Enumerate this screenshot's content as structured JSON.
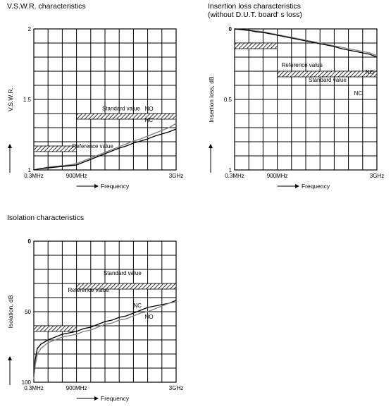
{
  "panels": [
    {
      "title_lines": [
        "V.S.W.R. characteristics"
      ]
    },
    {
      "title_lines": [
        "Insertion loss characteristics",
        "(without D.U.T. board' s loss)"
      ]
    },
    {
      "title_lines": [
        "Isolation characteristics"
      ]
    }
  ],
  "colors": {
    "no_curve": "#808080",
    "nc_curve": "#000000",
    "grid": "#000000"
  },
  "chart_data": [
    {
      "type": "line",
      "title": "V.S.W.R. characteristics",
      "xlabel": "Frequency",
      "ylabel": "V.S.W.R.",
      "x_tick_labels": [
        "0.3MHz",
        "900MHz",
        "3GHz"
      ],
      "x_ticks_ghz": [
        0.0003,
        0.9,
        3
      ],
      "y_tick_labels": [
        "1",
        "1.5",
        "2"
      ],
      "ylim": [
        1,
        2
      ],
      "y_inverted": false,
      "x_grid_divisions": 10,
      "y_grid_divisions": 10,
      "standard_value": {
        "label": "Standard value",
        "segments": [
          {
            "x0": 0.0003,
            "x1": 0.9,
            "y": 1.15
          },
          {
            "x0": 0.9,
            "x1": 3,
            "y": 1.38
          }
        ]
      },
      "reference_label": "Reference value",
      "series": [
        {
          "name": "NO",
          "x": [
            0.0003,
            0.15,
            0.3,
            0.45,
            0.6,
            0.75,
            0.9,
            1.05,
            1.2,
            1.35,
            1.5,
            1.65,
            1.8,
            1.95,
            2.1,
            2.25,
            2.4,
            2.55,
            2.7,
            2.85,
            3
          ],
          "y": [
            1.0,
            1.01,
            1.02,
            1.025,
            1.03,
            1.035,
            1.045,
            1.065,
            1.085,
            1.105,
            1.125,
            1.145,
            1.165,
            1.185,
            1.205,
            1.22,
            1.24,
            1.26,
            1.28,
            1.3,
            1.33
          ]
        },
        {
          "name": "NC",
          "x": [
            0.0003,
            0.15,
            0.3,
            0.45,
            0.6,
            0.75,
            0.9,
            1.05,
            1.2,
            1.35,
            1.5,
            1.65,
            1.8,
            1.95,
            2.1,
            2.25,
            2.4,
            2.55,
            2.7,
            2.85,
            3
          ],
          "y": [
            1.0,
            1.01,
            1.015,
            1.02,
            1.025,
            1.03,
            1.035,
            1.055,
            1.075,
            1.095,
            1.115,
            1.135,
            1.155,
            1.17,
            1.19,
            1.205,
            1.22,
            1.24,
            1.255,
            1.27,
            1.29
          ]
        }
      ],
      "annotations": [
        "Standard value",
        "Reference value",
        "NO",
        "NC"
      ]
    },
    {
      "type": "line",
      "title": "Insertion loss characteristics",
      "xlabel": "Frequency",
      "ylabel": "Insertion loss, dB",
      "x_tick_labels": [
        "0.3MHz",
        "900MHz",
        "3GHz"
      ],
      "x_ticks_ghz": [
        0.0003,
        0.9,
        3
      ],
      "y_tick_labels": [
        "0",
        "0.5",
        "1"
      ],
      "ylim": [
        0,
        1
      ],
      "y_inverted": true,
      "x_grid_divisions": 10,
      "y_grid_divisions": 10,
      "standard_value": {
        "label": "Standard value",
        "segments": [
          {
            "x0": 0.0003,
            "x1": 0.9,
            "y": 0.1
          },
          {
            "x0": 0.9,
            "x1": 3,
            "y": 0.3
          }
        ]
      },
      "reference_label": "Reference value",
      "series": [
        {
          "name": "NO",
          "x": [
            0.0003,
            0.15,
            0.3,
            0.45,
            0.6,
            0.75,
            0.9,
            1.05,
            1.2,
            1.35,
            1.5,
            1.65,
            1.8,
            1.95,
            2.1,
            2.25,
            2.4,
            2.55,
            2.7,
            2.85,
            3
          ],
          "y": [
            0.0,
            0.005,
            0.01,
            0.015,
            0.02,
            0.03,
            0.04,
            0.05,
            0.06,
            0.07,
            0.08,
            0.09,
            0.1,
            0.11,
            0.12,
            0.13,
            0.14,
            0.15,
            0.16,
            0.17,
            0.19
          ]
        },
        {
          "name": "NC",
          "x": [
            0.0003,
            0.15,
            0.3,
            0.45,
            0.6,
            0.75,
            0.9,
            1.05,
            1.2,
            1.35,
            1.5,
            1.65,
            1.8,
            1.95,
            2.1,
            2.25,
            2.4,
            2.55,
            2.7,
            2.85,
            3
          ],
          "y": [
            0.0,
            0.005,
            0.01,
            0.02,
            0.025,
            0.035,
            0.045,
            0.055,
            0.065,
            0.075,
            0.085,
            0.095,
            0.105,
            0.115,
            0.125,
            0.14,
            0.15,
            0.16,
            0.17,
            0.18,
            0.2
          ]
        }
      ],
      "annotations": [
        "Standard value",
        "Reference value",
        "NO",
        "NC"
      ]
    },
    {
      "type": "line",
      "title": "Isolation characteristics",
      "xlabel": "Frequency",
      "ylabel": "Isolation, dB",
      "x_tick_labels": [
        "0.3MHz",
        "900MHz",
        "3GHz"
      ],
      "x_ticks_ghz": [
        0.0003,
        0.9,
        3
      ],
      "y_tick_labels": [
        "0",
        "50",
        "100"
      ],
      "ylim": [
        0,
        100
      ],
      "y_inverted": true,
      "x_grid_divisions": 10,
      "y_grid_divisions": 10,
      "standard_value": {
        "label": "Standard value",
        "segments": [
          {
            "x0": 0.0003,
            "x1": 0.9,
            "y": 60
          },
          {
            "x0": 0.9,
            "x1": 3,
            "y": 30
          }
        ]
      },
      "reference_label": "Reference value",
      "series": [
        {
          "name": "NC",
          "x": [
            0.0003,
            0.03,
            0.075,
            0.15,
            0.3,
            0.45,
            0.6,
            0.75,
            0.9,
            1.05,
            1.2,
            1.35,
            1.5,
            1.65,
            1.8,
            1.95,
            2.1,
            2.25,
            2.4,
            2.55,
            2.7,
            2.85,
            3
          ],
          "y": [
            96,
            84,
            76,
            73,
            70,
            68,
            66,
            65,
            64,
            62,
            61,
            59,
            57,
            56,
            54,
            53,
            51,
            49,
            47,
            46,
            45,
            44,
            42
          ]
        },
        {
          "name": "NO",
          "x": [
            0.0003,
            0.03,
            0.075,
            0.15,
            0.3,
            0.45,
            0.6,
            0.75,
            0.9,
            1.05,
            1.2,
            1.35,
            1.5,
            1.65,
            1.8,
            1.95,
            2.1,
            2.25,
            2.4,
            2.55,
            2.7,
            2.85,
            3
          ],
          "y": [
            98,
            88,
            80,
            76,
            72,
            70,
            68,
            67,
            66,
            64,
            63,
            61,
            59,
            58,
            56,
            55,
            53,
            51,
            50,
            48,
            46,
            44,
            43
          ]
        }
      ],
      "annotations": [
        "Standard value",
        "Reference value",
        "NC",
        "NO"
      ]
    }
  ]
}
